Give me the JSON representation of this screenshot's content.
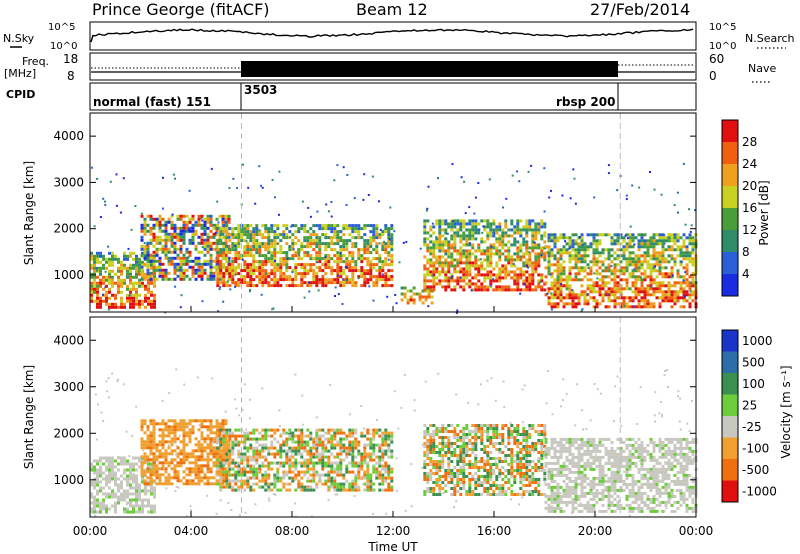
{
  "header": {
    "station": "Prince George (fitACF)",
    "beam": "Beam 12",
    "date": "27/Feb/2014"
  },
  "top_panels": {
    "nsky_label": "N.Sky",
    "nsearch_label": "N.Search",
    "noise_ticks_left": [
      "10^5",
      "10^0"
    ],
    "noise_ticks_right": [
      "10^5",
      "10^0"
    ],
    "freq_label_1": "Freq.",
    "freq_label_2": "[MHz]",
    "freq_ticks": [
      "18",
      "8"
    ],
    "nave_label": "Nave",
    "nave_ticks": [
      "60",
      "0"
    ],
    "cpid_label": "CPID",
    "cpid_segments": [
      {
        "label": "normal (fast) 151",
        "start_hour": 0
      },
      {
        "label": "3503",
        "start_hour": 6
      },
      {
        "label": "rbsp 200",
        "start_hour": 21
      }
    ]
  },
  "time_axis": {
    "label": "Time UT",
    "ticks": [
      "00:00",
      "04:00",
      "08:00",
      "12:00",
      "16:00",
      "20:00",
      "00:00"
    ]
  },
  "chart_data": [
    {
      "type": "heatmap",
      "quantity": "Power",
      "ylabel": "Slant Range [km]",
      "xlabel": "Time UT",
      "xlim_hours": [
        0,
        24
      ],
      "ylim": [
        200,
        4500
      ],
      "yticks": [
        "1000",
        "2000",
        "3000",
        "4000"
      ],
      "colorbar": {
        "label": "Power [dB]",
        "range": [
          0,
          32
        ],
        "ticks": [
          "4",
          "8",
          "12",
          "16",
          "20",
          "24",
          "28"
        ],
        "colors": [
          "#1a2ce0",
          "#2a5fd6",
          "#2f8c6a",
          "#4a9e3a",
          "#c8d020",
          "#f0a020",
          "#f06010",
          "#e01010"
        ]
      },
      "echo_bands": [
        {
          "start_hour": 0.0,
          "end_hour": 2.6,
          "range_low": 300,
          "range_high": 1500,
          "level": "high"
        },
        {
          "start_hour": 2.0,
          "end_hour": 5.5,
          "range_low": 900,
          "range_high": 2300,
          "level": "mixed"
        },
        {
          "start_hour": 5.0,
          "end_hour": 12.0,
          "range_low": 800,
          "range_high": 2100,
          "level": "high"
        },
        {
          "start_hour": 12.3,
          "end_hour": 13.6,
          "range_low": 400,
          "range_high": 750,
          "level": "high"
        },
        {
          "start_hour": 13.2,
          "end_hour": 18.0,
          "range_low": 700,
          "range_high": 2200,
          "level": "high"
        },
        {
          "start_hour": 18.0,
          "end_hour": 24.0,
          "range_low": 300,
          "range_high": 1900,
          "level": "high"
        }
      ]
    },
    {
      "type": "heatmap",
      "quantity": "Velocity",
      "ylabel": "Slant Range [km]",
      "xlabel": "Time UT",
      "xlim_hours": [
        0,
        24
      ],
      "ylim": [
        200,
        4500
      ],
      "yticks": [
        "1000",
        "2000",
        "3000",
        "4000"
      ],
      "colorbar": {
        "label": "Velocity [m s⁻¹]",
        "ticks": [
          "1000",
          "500",
          "100",
          "25",
          "-25",
          "-100",
          "-500",
          "-1000"
        ],
        "colors": [
          "#1a34c8",
          "#2d6ea8",
          "#3a9050",
          "#6ccc3a",
          "#c8c8c0",
          "#f0a030",
          "#f07010",
          "#e01010"
        ]
      },
      "echo_bands": [
        {
          "start_hour": 0.0,
          "end_hour": 2.6,
          "range_low": 300,
          "range_high": 1500,
          "class": "ground scatter"
        },
        {
          "start_hour": 2.0,
          "end_hour": 5.5,
          "range_low": 900,
          "range_high": 2300,
          "class": "away (negative)"
        },
        {
          "start_hour": 5.0,
          "end_hour": 12.0,
          "range_low": 800,
          "range_high": 2100,
          "class": "mixed"
        },
        {
          "start_hour": 13.2,
          "end_hour": 18.0,
          "range_low": 700,
          "range_high": 2200,
          "class": "mixed"
        },
        {
          "start_hour": 18.0,
          "end_hour": 24.0,
          "range_low": 300,
          "range_high": 1900,
          "class": "ground scatter"
        }
      ]
    }
  ]
}
